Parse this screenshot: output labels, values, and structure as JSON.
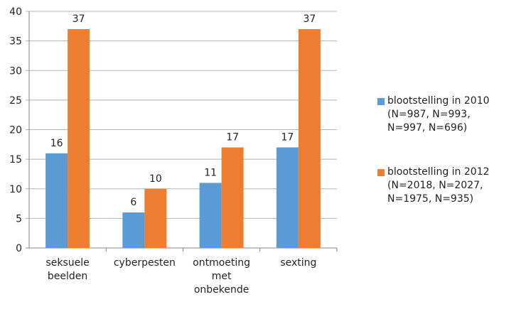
{
  "chart_data": {
    "type": "bar",
    "categories": [
      [
        "seksuele",
        "beelden"
      ],
      [
        "cyberpesten"
      ],
      [
        "ontmoeting",
        "met",
        "onbekende"
      ],
      [
        "sexting"
      ]
    ],
    "series": [
      {
        "name": "bloottelling_2010",
        "label": "blootstelling in 2010\n(N=987, N=993,\nN=997, N=696)",
        "color": "#5B9BD5",
        "values": [
          16,
          6,
          11,
          17
        ]
      },
      {
        "name": "bloottelling_2012",
        "label": "blootstelling in 2012\n(N=2018, N=2027,\nN=1975, N=935)",
        "color": "#ED7D31",
        "values": [
          37,
          10,
          17,
          37
        ]
      }
    ],
    "ylim": [
      0,
      40
    ],
    "yticks": [
      0,
      5,
      10,
      15,
      20,
      25,
      30,
      35,
      40
    ],
    "grid": true,
    "data_labels": true,
    "legend": "right"
  }
}
